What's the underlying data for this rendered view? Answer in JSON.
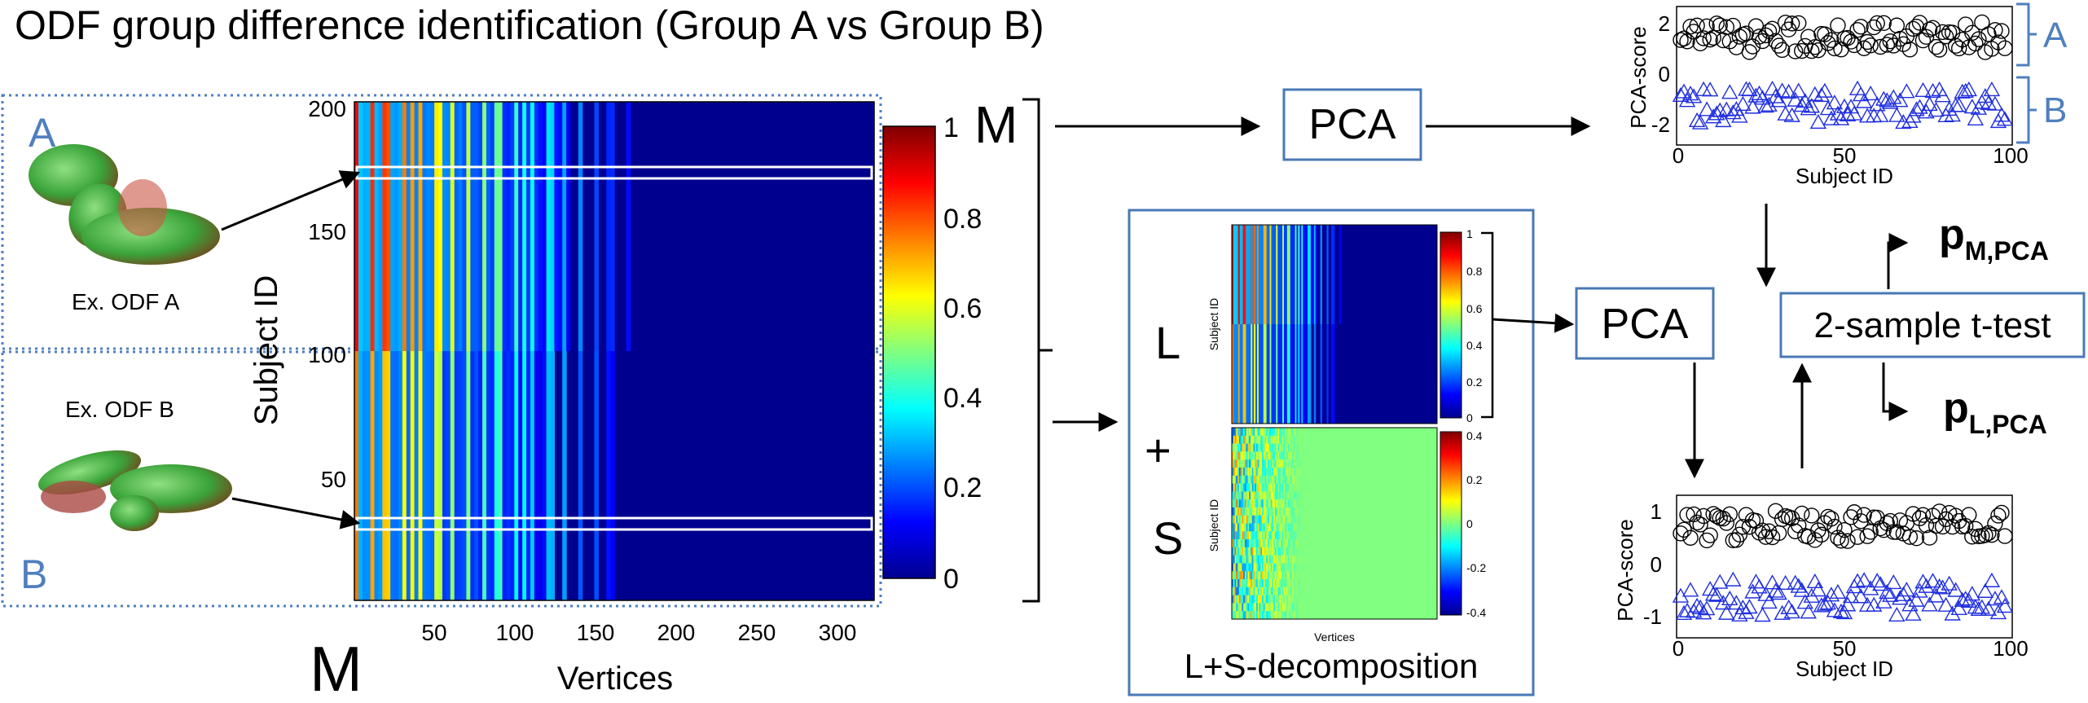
{
  "title": "ODF group difference identification (Group A vs Group B)",
  "colors": {
    "accent_blue": "#4f7fbf",
    "triangle_blue": "#1f2ee0",
    "circle_black": "#000000",
    "box_border": "#4a78b6"
  },
  "main_heatmap": {
    "label": "M",
    "ylabel": "Subject ID",
    "xlabel": "Vertices",
    "y_ticks": [
      "200",
      "150",
      "100",
      "50"
    ],
    "x_ticks": [
      "50",
      "100",
      "150",
      "200",
      "250",
      "300"
    ],
    "colorbar_ticks": [
      "1",
      "0.8",
      "0.6",
      "0.4",
      "0.2",
      "0"
    ],
    "big_label": "M"
  },
  "groups": {
    "a": {
      "letter": "A",
      "caption": "Ex. ODF A"
    },
    "b": {
      "letter": "B",
      "caption": "Ex. ODF B"
    }
  },
  "pca_top": {
    "label": "PCA"
  },
  "pca_mid": {
    "label": "PCA"
  },
  "ttest": {
    "label": "2-sample t-test"
  },
  "p_m": {
    "main": "p",
    "sub": "M,PCA"
  },
  "p_l": {
    "main": "p",
    "sub": "L,PCA"
  },
  "decomp": {
    "caption": "L+S-decomposition",
    "l_label": "L",
    "plus": "+",
    "s_label": "S",
    "l_ylabel": "Subject ID",
    "s_ylabel": "Subject ID",
    "xlabel": "Vertices",
    "l_cbar_ticks": [
      "1",
      "0.8",
      "0.6",
      "0.4",
      "0.2",
      "0"
    ],
    "s_cbar_ticks": [
      "0.4",
      "0.2",
      "0",
      "-0.2",
      "-0.4"
    ]
  },
  "scatter_top": {
    "ylabel": "PCA-score",
    "xlabel": "Subject ID",
    "y_ticks": [
      "2",
      "0",
      "-2"
    ],
    "x_ticks": [
      "0",
      "50",
      "100"
    ],
    "brace_a": "A",
    "brace_b": "B"
  },
  "scatter_bottom": {
    "ylabel": "PCA-score",
    "xlabel": "Subject ID",
    "y_ticks": [
      "1",
      "0",
      "-1"
    ],
    "x_ticks": [
      "0",
      "50",
      "100"
    ]
  }
}
